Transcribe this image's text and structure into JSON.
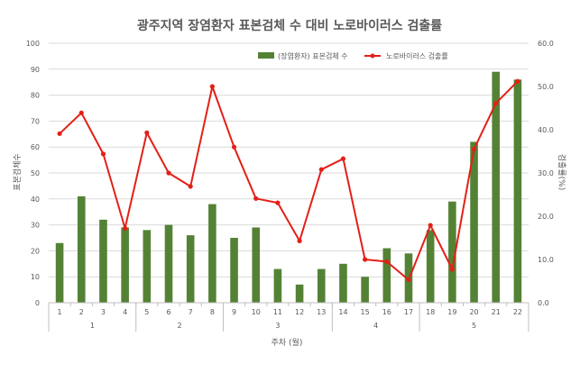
{
  "chart_data": {
    "type": "bar",
    "title": "광주지역 장염환자 표본검체 수 대비 노로바이러스 검출률",
    "xlabel": "주차 (월)",
    "ylabel_left": "표본검체수",
    "ylabel_right": "검출률(%)",
    "categories": [
      "1",
      "2",
      "3",
      "4",
      "5",
      "6",
      "7",
      "8",
      "9",
      "10",
      "11",
      "12",
      "13",
      "14",
      "15",
      "16",
      "17",
      "18",
      "19",
      "20",
      "21",
      "22"
    ],
    "month_groups": [
      {
        "label": "1",
        "weeks": [
          "1",
          "2",
          "3",
          "4"
        ]
      },
      {
        "label": "2",
        "weeks": [
          "5",
          "6",
          "7",
          "8"
        ]
      },
      {
        "label": "3",
        "weeks": [
          "9",
          "10",
          "11",
          "12",
          "13"
        ]
      },
      {
        "label": "4",
        "weeks": [
          "14",
          "15",
          "16",
          "17"
        ]
      },
      {
        "label": "5",
        "weeks": [
          "18",
          "19",
          "20",
          "21",
          "22"
        ]
      }
    ],
    "left_axis": {
      "min": 0,
      "max": 100,
      "step": 10,
      "tick_labels": [
        "0",
        "10",
        "20",
        "30",
        "40",
        "50",
        "60",
        "70",
        "80",
        "90",
        "100"
      ]
    },
    "right_axis": {
      "min": 0,
      "max": 60,
      "step": 10,
      "tick_labels": [
        "0.0",
        "10.0",
        "20.0",
        "30.0",
        "40.0",
        "50.0",
        "60.0"
      ]
    },
    "grid": true,
    "legend_position": "top-right",
    "series": [
      {
        "name": "(장염환자) 표본검체 수",
        "type": "bar",
        "axis": "left",
        "color": "#548235",
        "values": [
          23,
          41,
          32,
          29,
          28,
          30,
          26,
          38,
          25,
          29,
          13,
          7,
          13,
          15,
          10,
          21,
          19,
          28,
          39,
          62,
          89,
          86
        ]
      },
      {
        "name": "노로바이러스 검출률",
        "type": "line",
        "axis": "right",
        "color": "#e32018",
        "values": [
          39.1,
          43.9,
          34.4,
          17.2,
          39.3,
          30.0,
          26.9,
          50.0,
          36.0,
          24.1,
          23.1,
          14.3,
          30.8,
          33.3,
          10.0,
          9.5,
          5.3,
          17.9,
          7.7,
          35.5,
          46.1,
          51.2
        ]
      }
    ]
  }
}
